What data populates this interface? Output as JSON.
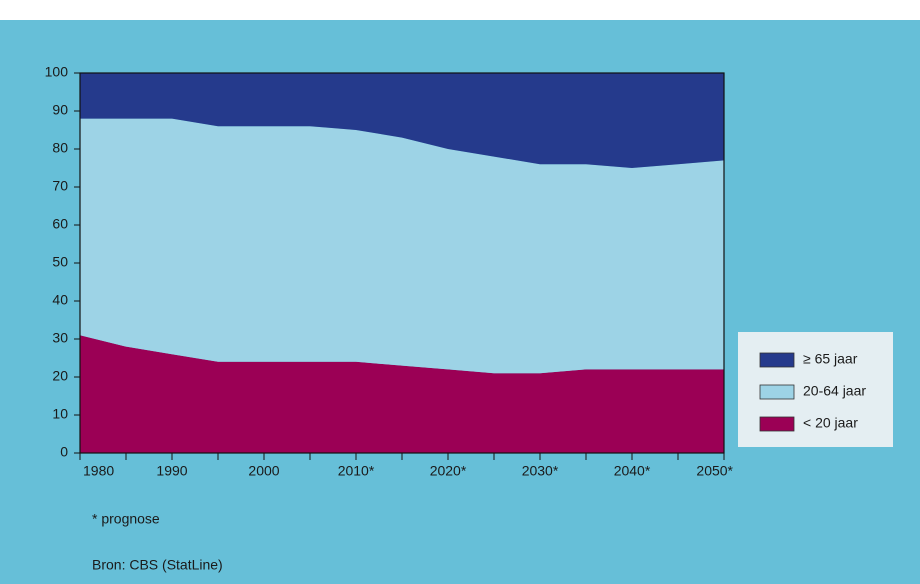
{
  "chart_data": {
    "type": "stacked-area",
    "categories": [
      "1980",
      null,
      "1990",
      null,
      "2000",
      null,
      "2010*",
      null,
      "2020*",
      null,
      "2030*",
      null,
      "2040*",
      null,
      "2050*"
    ],
    "series": [
      {
        "name": "< 20 jaar",
        "color": "#9b0055",
        "values": [
          31,
          28,
          26,
          24,
          24,
          24,
          24,
          23,
          22,
          21,
          21,
          22,
          22,
          22,
          22
        ]
      },
      {
        "name": "20-64 jaar",
        "color": "#9dd3e6",
        "values": [
          57,
          60,
          62,
          62,
          62,
          62,
          61,
          60,
          58,
          57,
          55,
          54,
          53,
          54,
          55
        ]
      },
      {
        "name": "≥ 65 jaar",
        "color": "#253a8c",
        "values": [
          12,
          12,
          12,
          14,
          14,
          14,
          15,
          17,
          20,
          22,
          24,
          24,
          25,
          24,
          23
        ]
      }
    ],
    "ylim": [
      0,
      100
    ],
    "yticks": [
      0,
      10,
      20,
      30,
      40,
      50,
      60,
      70,
      80,
      90,
      100
    ],
    "notes": [
      "* prognose",
      "Bron: CBS (StatLine)"
    ]
  }
}
